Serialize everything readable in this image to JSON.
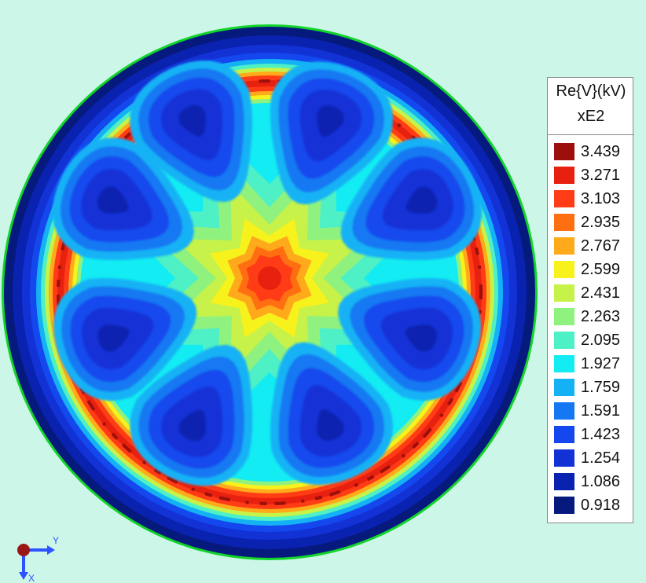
{
  "legend": {
    "title": "Re{V}(kV)",
    "scale": "xE2",
    "levels": [
      {
        "label": "3.439",
        "color": "#9c0f0c"
      },
      {
        "label": "3.271",
        "color": "#e8200f"
      },
      {
        "label": "3.103",
        "color": "#ff3c15"
      },
      {
        "label": "2.935",
        "color": "#ff6f12"
      },
      {
        "label": "2.767",
        "color": "#ffaa1a"
      },
      {
        "label": "2.599",
        "color": "#f7f21c"
      },
      {
        "label": "2.431",
        "color": "#c6f24a"
      },
      {
        "label": "2.263",
        "color": "#8ff27e"
      },
      {
        "label": "2.095",
        "color": "#4ef0c6"
      },
      {
        "label": "1.927",
        "color": "#12ecf2"
      },
      {
        "label": "1.759",
        "color": "#14b2f5"
      },
      {
        "label": "1.591",
        "color": "#1478f2"
      },
      {
        "label": "1.423",
        "color": "#1448ee"
      },
      {
        "label": "1.254",
        "color": "#1232d6"
      },
      {
        "label": "1.086",
        "color": "#0a22b0"
      },
      {
        "label": "0.918",
        "color": "#061a7e"
      }
    ]
  },
  "axes_triad": {
    "y_label": "Y",
    "x_label": "X",
    "y_color": "#2d52ff",
    "x_color": "#2d52ff",
    "origin_color": "#9b1616"
  },
  "plot": {
    "background": "#ccf6e8",
    "boundary_color": "#12d42a"
  }
}
